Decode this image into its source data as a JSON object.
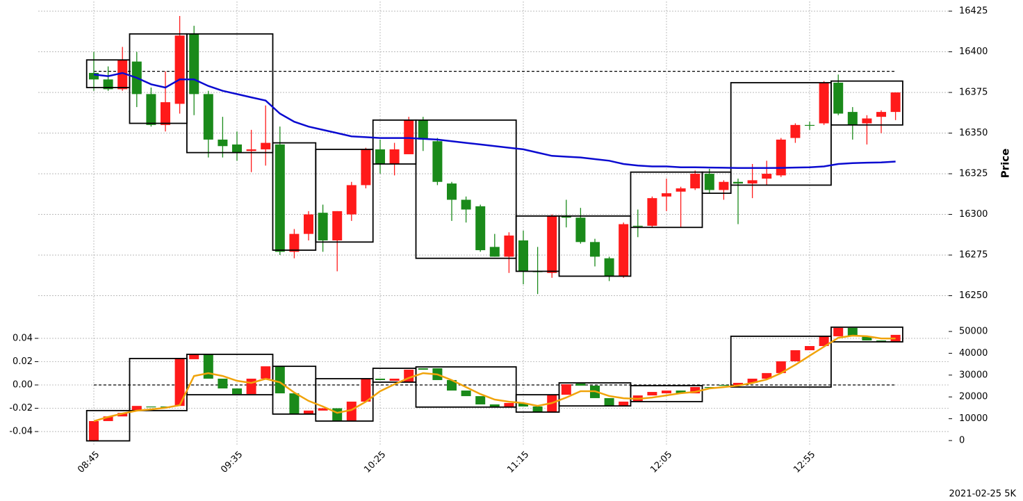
{
  "chart_data": [
    {
      "type": "candlestick",
      "categories": [
        "08:45",
        null,
        null,
        null,
        null,
        null,
        null,
        null,
        null,
        null,
        "09:35",
        null,
        null,
        null,
        null,
        null,
        null,
        null,
        null,
        null,
        "10:25",
        null,
        null,
        null,
        null,
        null,
        null,
        null,
        null,
        null,
        "11:15",
        null,
        null,
        null,
        null,
        null,
        null,
        null,
        null,
        null,
        "12:05",
        null,
        null,
        null,
        null,
        null,
        null,
        null,
        null,
        null,
        "12:55",
        null,
        null,
        null,
        null,
        null,
        null
      ],
      "open": [
        16387,
        16383,
        16377,
        16394,
        16374,
        16355,
        16368,
        16411,
        16374,
        16346,
        16343,
        16339,
        16340,
        16343,
        16277,
        16288,
        16301,
        16284,
        16300,
        16318,
        16340,
        16331,
        16337,
        16358,
        16345,
        16319,
        16309,
        16305,
        16280,
        16274,
        16284,
        16265,
        16264,
        16299,
        16298,
        16283,
        16273,
        16262,
        16293,
        16293,
        16311,
        16314,
        16316,
        16325,
        16315,
        16320,
        16319,
        16322,
        16324,
        16347,
        16355,
        16356,
        16381,
        16363,
        16356,
        16360,
        16363
      ],
      "high": [
        16400,
        16391,
        16403,
        16400,
        16378,
        16388,
        16422,
        16416,
        16376,
        16360,
        16351,
        16352,
        16367,
        16354,
        16291,
        16302,
        16306,
        16302,
        16320,
        16341,
        16346,
        16344,
        16360,
        16360,
        16347,
        16320,
        16311,
        16306,
        16288,
        16289,
        16290,
        16280,
        16300,
        16309,
        16304,
        16285,
        16274,
        16295,
        16303,
        16311,
        16322,
        16317,
        16327,
        16328,
        16321,
        16322,
        16331,
        16333,
        16347,
        16356,
        16357,
        16382,
        16386,
        16366,
        16361,
        16364,
        16375
      ],
      "low": [
        16376,
        16376,
        16376,
        16366,
        16354,
        16351,
        16362,
        16361,
        16335,
        16335,
        16333,
        16326,
        16330,
        16275,
        16273,
        16284,
        16277,
        16265,
        16296,
        16316,
        16325,
        16324,
        16337,
        16339,
        16318,
        16296,
        16295,
        16277,
        16274,
        16264,
        16257,
        16251,
        16261,
        16292,
        16282,
        16268,
        16259,
        16261,
        16286,
        16292,
        16302,
        16292,
        16315,
        16313,
        16309,
        16294,
        16310,
        16318,
        16323,
        16344,
        16352,
        16355,
        16361,
        16346,
        16343,
        16350,
        16358
      ],
      "close": [
        16383,
        16377,
        16395,
        16374,
        16355,
        16369,
        16410,
        16374,
        16346,
        16342,
        16338,
        16340,
        16344,
        16277,
        16288,
        16300,
        16284,
        16302,
        16318,
        16340,
        16331,
        16340,
        16358,
        16346,
        16320,
        16309,
        16303,
        16278,
        16274,
        16287,
        16265,
        16265,
        16299,
        16298,
        16283,
        16274,
        16262,
        16294,
        16293,
        16310,
        16313,
        16316,
        16325,
        16315,
        16320,
        16319,
        16321,
        16325,
        16346,
        16355,
        16355,
        16381,
        16362,
        16355,
        16359,
        16363,
        16375
      ],
      "up_color": "#ff1a1a",
      "down_color": "#1a8a1a",
      "line": {
        "color": "#0a0ad0",
        "values": [
          16386,
          16385,
          16387,
          16384,
          16380,
          16378,
          16383,
          16383,
          16379,
          16376,
          16374,
          16372,
          16370,
          16362,
          16357,
          16354,
          16352,
          16350,
          16348,
          16347.5,
          16347,
          16347,
          16347,
          16346.5,
          16346,
          16345,
          16344,
          16343,
          16342,
          16341,
          16340,
          16338,
          16336,
          16335.5,
          16335,
          16334,
          16333,
          16331,
          16330,
          16329.5,
          16329.5,
          16329,
          16329,
          16328.8,
          16328.7,
          16328.5,
          16328.5,
          16328.5,
          16328.6,
          16328.8,
          16329,
          16329.5,
          16331,
          16331.5,
          16331.8,
          16332,
          16332.5
        ]
      },
      "reference_line": 16388,
      "boxes": [
        {
          "from": 0,
          "to": 2,
          "low": 16378,
          "high": 16395
        },
        {
          "from": 3,
          "to": 6,
          "low": 16356,
          "high": 16411
        },
        {
          "from": 7,
          "to": 12,
          "low": 16338,
          "high": 16411
        },
        {
          "from": 13,
          "to": 15,
          "low": 16278,
          "high": 16344
        },
        {
          "from": 16,
          "to": 19,
          "low": 16283,
          "high": 16340
        },
        {
          "from": 20,
          "to": 22,
          "low": 16331,
          "high": 16358
        },
        {
          "from": 23,
          "to": 29,
          "low": 16273,
          "high": 16358
        },
        {
          "from": 30,
          "to": 32,
          "low": 16265,
          "high": 16299
        },
        {
          "from": 33,
          "to": 37,
          "low": 16262,
          "high": 16299
        },
        {
          "from": 38,
          "to": 42,
          "low": 16292,
          "high": 16326
        },
        {
          "from": 43,
          "to": 44,
          "low": 16313,
          "high": 16326
        },
        {
          "from": 45,
          "to": 51,
          "low": 16318,
          "high": 16381
        },
        {
          "from": 52,
          "to": 56,
          "low": 16355,
          "high": 16382
        }
      ],
      "ylabel": "Price",
      "ylim": [
        16231,
        16431
      ],
      "yticks": [
        16250,
        16275,
        16300,
        16325,
        16350,
        16375,
        16400,
        16425
      ],
      "grid": true,
      "footnote": "2021-02-25 5K"
    },
    {
      "type": "candlestick",
      "open": [
        -0.048,
        -0.031,
        -0.027,
        -0.0215,
        -0.0185,
        -0.0185,
        -0.018,
        0.0221,
        0.0263,
        0.0054,
        -0.003,
        -0.0078,
        0.0054,
        0.016,
        -0.0072,
        -0.025,
        -0.022,
        -0.02,
        -0.031,
        -0.0143,
        0.0054,
        0.0036,
        0.0024,
        0.0143,
        0.0143,
        0.0042,
        -0.0048,
        -0.0096,
        -0.0167,
        -0.019,
        -0.0155,
        -0.0185,
        -0.0233,
        -0.0084,
        0.0012,
        -0.0006,
        -0.0113,
        -0.018,
        -0.0143,
        -0.009,
        -0.0072,
        -0.0048,
        -0.0072,
        -0.0018,
        0,
        0,
        0.0018,
        0.0054,
        0.0102,
        0.0203,
        0.0298,
        0.0334,
        0.0418,
        0.049,
        0.0418,
        0.0382,
        0.037
      ],
      "close": [
        -0.031,
        -0.027,
        -0.024,
        -0.018,
        -0.0185,
        -0.0185,
        0.0227,
        0.0263,
        0.0054,
        -0.003,
        -0.0078,
        0.0054,
        0.016,
        -0.0072,
        -0.025,
        -0.022,
        -0.02,
        -0.031,
        -0.0143,
        0.0054,
        0.0042,
        0.0054,
        0.0131,
        0.0131,
        0.0042,
        -0.0048,
        -0.0096,
        -0.0167,
        -0.019,
        -0.0155,
        -0.0185,
        -0.0233,
        -0.0084,
        0.0006,
        -0.0006,
        -0.0113,
        -0.018,
        -0.0143,
        -0.009,
        -0.006,
        -0.0048,
        -0.0072,
        -0.0018,
        -0.0018,
        0,
        0.0018,
        0.0054,
        0.0102,
        0.0203,
        0.0298,
        0.0334,
        0.0418,
        0.049,
        0.0418,
        0.0382,
        0.037,
        0.043
      ],
      "up_color": "#ff1a1a",
      "down_color": "#1a8a1a",
      "line": {
        "color": "#f0a30a",
        "axis": "y2",
        "values": [
          8900,
          10800,
          12400,
          13700,
          14300,
          15000,
          16200,
          29600,
          30900,
          29600,
          27400,
          26400,
          28300,
          26700,
          22000,
          18200,
          15600,
          12700,
          14000,
          17800,
          22600,
          25800,
          28700,
          30900,
          30300,
          27700,
          24500,
          21300,
          18800,
          17800,
          17200,
          15900,
          17200,
          19700,
          22600,
          22600,
          20400,
          19400,
          19100,
          19700,
          20700,
          21700,
          22300,
          23900,
          24500,
          25200,
          26400,
          28000,
          30900,
          34700,
          38900,
          43000,
          47100,
          48100,
          47800,
          46800,
          46800
        ]
      },
      "reference_line": 0,
      "boxes": [
        {
          "from": 0,
          "to": 2,
          "low": -0.048,
          "high": -0.022
        },
        {
          "from": 3,
          "to": 6,
          "low": -0.022,
          "high": 0.0227
        },
        {
          "from": 7,
          "to": 12,
          "low": -0.0084,
          "high": 0.0263
        },
        {
          "from": 13,
          "to": 15,
          "low": -0.025,
          "high": 0.016
        },
        {
          "from": 16,
          "to": 19,
          "low": -0.031,
          "high": 0.0054
        },
        {
          "from": 20,
          "to": 22,
          "low": 0.0024,
          "high": 0.0143
        },
        {
          "from": 23,
          "to": 29,
          "low": -0.019,
          "high": 0.0155
        },
        {
          "from": 30,
          "to": 32,
          "low": -0.0233,
          "high": -0.0084
        },
        {
          "from": 33,
          "to": 37,
          "low": -0.018,
          "high": 0.0018
        },
        {
          "from": 38,
          "to": 42,
          "low": -0.0143,
          "high": -0.0006
        },
        {
          "from": 45,
          "to": 51,
          "low": -0.0018,
          "high": 0.0418
        },
        {
          "from": 52,
          "to": 56,
          "low": 0.037,
          "high": 0.0496
        }
      ],
      "ylim": [
        -0.0513,
        0.0501
      ],
      "yticks": [
        -0.04,
        -0.02,
        {
          "value": 0,
          "label": "0.00"
        },
        0.02,
        0.04
      ],
      "y2lim": [
        -1910,
        52230
      ],
      "y2ticks": [
        0,
        10000,
        20000,
        30000,
        40000,
        50000
      ],
      "grid": true
    }
  ]
}
